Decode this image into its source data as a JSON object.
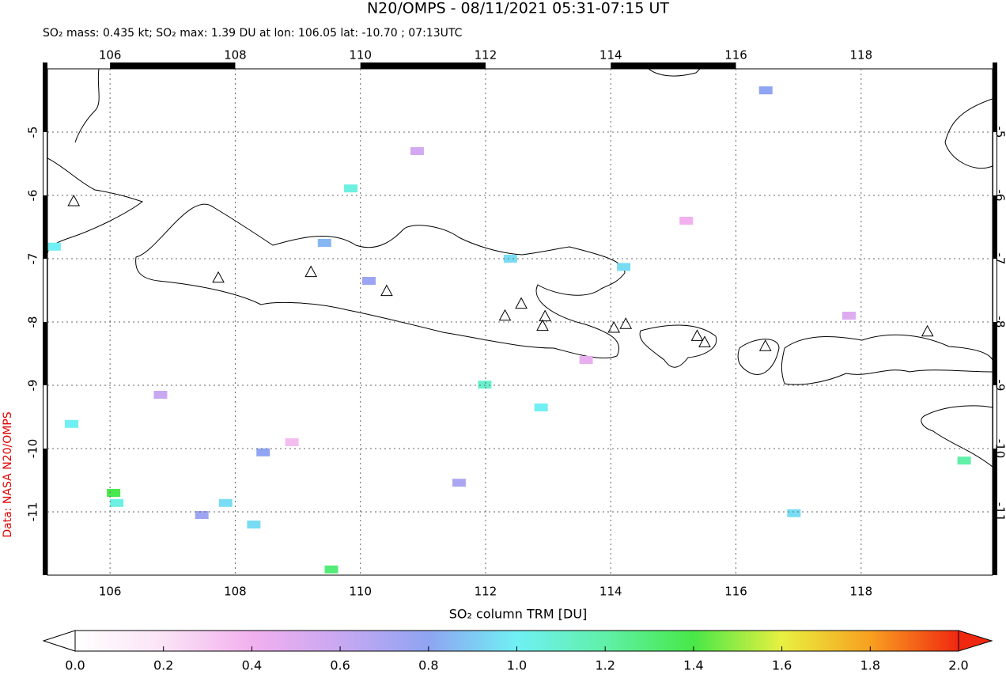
{
  "chart_data": {
    "type": "map",
    "title": "N20/OMPS - 08/11/2021 05:31-07:15 UT",
    "subtitle": "SO₂ mass: 0.435 kt; SO₂ max: 1.39 DU at lon: 106.05 lat: -10.70 ; 07:13UTC",
    "side_label": "Data: NASA N20/OMPS",
    "colorbar_label": "SO₂ column TRM [DU]",
    "xlim": [
      105.0,
      120.1
    ],
    "ylim": [
      -12.0,
      -4.0
    ],
    "xticks": [
      106,
      108,
      110,
      112,
      114,
      116,
      118
    ],
    "yticks": [
      -5,
      -6,
      -7,
      -8,
      -9,
      -10,
      -11
    ],
    "grid": true,
    "colorbar_lim": [
      0,
      2
    ],
    "colorbar_ticks": [
      {
        "value": 0,
        "label": "0.0"
      },
      0.2,
      0.4,
      0.6,
      0.8,
      {
        "value": 1,
        "label": "1.0"
      },
      1.2,
      1.4,
      1.6,
      1.8,
      {
        "value": 2,
        "label": "2.0"
      }
    ],
    "volcanoes": {
      "lon": [
        105.42,
        107.73,
        109.21,
        110.42,
        112.31,
        112.57,
        112.95,
        112.91,
        114.05,
        114.24,
        115.38,
        115.5,
        116.47,
        119.06
      ],
      "lat": [
        -6.1,
        -7.31,
        -7.22,
        -7.52,
        -7.91,
        -7.72,
        -7.92,
        -8.07,
        -8.1,
        -8.04,
        -8.23,
        -8.33,
        -8.39,
        -8.16
      ]
    },
    "pixels": {
      "lon": [
        109.84,
        105.1,
        105.38,
        106.05,
        106.1,
        109.53,
        111.98,
        112.88,
        107.84,
        108.29,
        108.44,
        119.64,
        114.2,
        112.39,
        116.92,
        107.46,
        111.57,
        116.47,
        109.42,
        110.13,
        106.8,
        110.9,
        113.6,
        117.8,
        115.2,
        108.9
      ],
      "lat": [
        -5.89,
        -6.81,
        -9.61,
        -10.7,
        -10.86,
        -11.91,
        -8.99,
        -9.35,
        -10.86,
        -11.2,
        -10.06,
        -10.19,
        -7.13,
        -7.0,
        -11.02,
        -11.05,
        -10.54,
        -4.34,
        -6.75,
        -7.35,
        -9.15,
        -5.3,
        -8.6,
        -7.9,
        -6.4,
        -9.9
      ],
      "values": [
        1.05,
        1.0,
        1.0,
        1.39,
        1.05,
        1.3,
        1.1,
        1.0,
        0.95,
        0.95,
        0.8,
        1.2,
        0.95,
        0.95,
        0.95,
        0.75,
        0.7,
        0.8,
        0.85,
        0.75,
        0.6,
        0.55,
        0.45,
        0.5,
        0.4,
        0.35
      ]
    }
  }
}
